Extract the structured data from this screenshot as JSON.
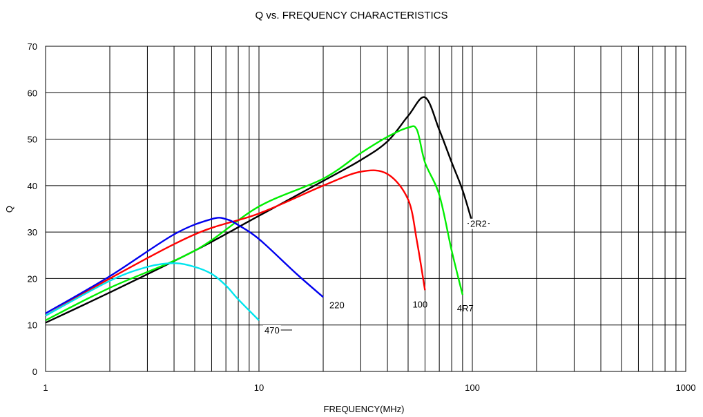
{
  "chart_data": {
    "type": "line",
    "title": "Q vs. FREQUENCY CHARACTERISTICS",
    "xlabel": "FREQUENCY(MHz)",
    "ylabel": "Q",
    "x_scale": "log",
    "xlim": [
      1,
      1000
    ],
    "ylim": [
      0,
      70
    ],
    "x_ticks": [
      1,
      10,
      100,
      1000
    ],
    "x_tick_labels": [
      "1",
      "10",
      "100",
      "1000"
    ],
    "y_ticks": [
      0,
      10,
      20,
      30,
      40,
      50,
      60,
      70
    ],
    "y_tick_labels": [
      "0",
      "10",
      "20",
      "30",
      "40",
      "50",
      "60",
      "70"
    ],
    "grid": true,
    "series": [
      {
        "name": "2R2",
        "color": "#000000",
        "x": [
          1,
          2,
          5,
          10,
          20,
          30,
          40,
          50,
          60,
          70,
          80,
          90,
          100
        ],
        "y": [
          10.5,
          17,
          26,
          33.5,
          41,
          45.5,
          49.5,
          55,
          59,
          52,
          45,
          39,
          32
        ]
      },
      {
        "name": "4R7",
        "color": "#00ee00",
        "x": [
          1,
          2,
          5,
          10,
          20,
          30,
          40,
          50,
          55,
          60,
          70,
          80,
          90
        ],
        "y": [
          11,
          18,
          26,
          35.5,
          41.5,
          47,
          50.5,
          52.5,
          52,
          45,
          38,
          26,
          16.5
        ]
      },
      {
        "name": "100",
        "color": "#ff0000",
        "x": [
          1,
          2,
          5,
          10,
          20,
          30,
          40,
          50,
          55,
          60
        ],
        "y": [
          12,
          20,
          29.5,
          34,
          40,
          43,
          42.5,
          37,
          28,
          17.5
        ]
      },
      {
        "name": "220",
        "color": "#0000ee",
        "x": [
          1,
          2,
          4,
          6,
          7,
          8,
          10,
          15,
          20
        ],
        "y": [
          12.5,
          20.5,
          29.5,
          32.8,
          32.8,
          31.5,
          28.5,
          21,
          16
        ]
      },
      {
        "name": "470",
        "color": "#00e5ee",
        "x": [
          1,
          2,
          3,
          4,
          5,
          6,
          7,
          8,
          10
        ],
        "y": [
          12,
          19.5,
          22.5,
          23.3,
          22.5,
          21,
          18.5,
          15.5,
          11
        ]
      }
    ]
  }
}
